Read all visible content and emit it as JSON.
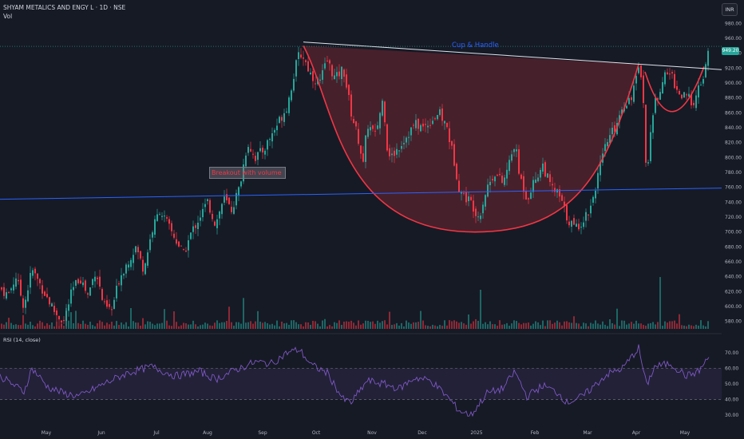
{
  "header": {
    "symbol": "SHYAM METALICS AND ENGY L · 1D · NSE",
    "volume_label": "Vol"
  },
  "currency": "INR",
  "last_price_tag": "949.20",
  "rsi_label": "RSI (14, close)",
  "colors": {
    "up": "#26a69a",
    "down": "#f23645",
    "cup": "#f23645",
    "trendline": "#2962ff",
    "rsi": "#7e57c2"
  },
  "annotations": {
    "cup_handle": "Cup & Handle",
    "breakout": "Breakout with volume"
  },
  "chart_data": [
    {
      "type": "candlestick",
      "title": "SHYAM METALICS AND ENGY L · 1D · NSE",
      "y_axis_ticks": [
        580,
        600,
        620,
        640,
        660,
        680,
        700,
        720,
        740,
        760,
        780,
        800,
        820,
        840,
        860,
        880,
        900,
        920,
        940,
        960,
        980
      ],
      "ylim": [
        570,
        990
      ],
      "x_axis_ticks": [
        "May",
        "Jun",
        "Jul",
        "Aug",
        "Sep",
        "Oct",
        "Nov",
        "Dec",
        "2025",
        "Feb",
        "Mar",
        "Apr",
        "May"
      ],
      "last_price": 949.2,
      "close_path": [
        [
          0,
          625
        ],
        [
          10,
          615
        ],
        [
          20,
          640
        ],
        [
          30,
          600
        ],
        [
          40,
          650
        ],
        [
          50,
          630
        ],
        [
          60,
          610
        ],
        [
          70,
          590
        ],
        [
          80,
          580
        ],
        [
          90,
          620
        ],
        [
          100,
          640
        ],
        [
          110,
          615
        ],
        [
          120,
          650
        ],
        [
          130,
          600
        ],
        [
          140,
          595
        ],
        [
          150,
          640
        ],
        [
          160,
          660
        ],
        [
          170,
          680
        ],
        [
          180,
          650
        ],
        [
          190,
          700
        ],
        [
          200,
          730
        ],
        [
          210,
          710
        ],
        [
          220,
          690
        ],
        [
          230,
          670
        ],
        [
          240,
          700
        ],
        [
          250,
          720
        ],
        [
          260,
          740
        ],
        [
          270,
          710
        ],
        [
          280,
          745
        ],
        [
          290,
          730
        ],
        [
          300,
          760
        ],
        [
          310,
          820
        ],
        [
          320,
          800
        ],
        [
          330,
          810
        ],
        [
          340,
          830
        ],
        [
          350,
          850
        ],
        [
          360,
          870
        ],
        [
          365,
          895
        ],
        [
          370,
          920
        ],
        [
          375,
          940
        ],
        [
          380,
          935
        ],
        [
          390,
          910
        ],
        [
          400,
          900
        ],
        [
          410,
          930
        ],
        [
          420,
          905
        ],
        [
          430,
          920
        ],
        [
          440,
          860
        ],
        [
          450,
          820
        ],
        [
          455,
          790
        ],
        [
          460,
          845
        ],
        [
          470,
          830
        ],
        [
          480,
          880
        ],
        [
          485,
          815
        ],
        [
          490,
          800
        ],
        [
          500,
          815
        ],
        [
          510,
          830
        ],
        [
          520,
          845
        ],
        [
          530,
          840
        ],
        [
          540,
          850
        ],
        [
          550,
          860
        ],
        [
          560,
          840
        ],
        [
          570,
          790
        ],
        [
          575,
          760
        ],
        [
          580,
          750
        ],
        [
          590,
          740
        ],
        [
          600,
          720
        ],
        [
          610,
          760
        ],
        [
          620,
          780
        ],
        [
          630,
          765
        ],
        [
          640,
          800
        ],
        [
          645,
          820
        ],
        [
          650,
          780
        ],
        [
          660,
          745
        ],
        [
          670,
          770
        ],
        [
          680,
          790
        ],
        [
          690,
          760
        ],
        [
          700,
          750
        ],
        [
          710,
          720
        ],
        [
          720,
          705
        ],
        [
          730,
          715
        ],
        [
          740,
          735
        ],
        [
          750,
          780
        ],
        [
          760,
          820
        ],
        [
          770,
          840
        ],
        [
          780,
          870
        ],
        [
          790,
          880
        ],
        [
          800,
          915
        ],
        [
          805,
          910
        ],
        [
          810,
          760
        ],
        [
          815,
          840
        ],
        [
          820,
          870
        ],
        [
          830,
          905
        ],
        [
          840,
          915
        ],
        [
          850,
          885
        ],
        [
          860,
          880
        ],
        [
          870,
          875
        ],
        [
          875,
          890
        ],
        [
          880,
          905
        ],
        [
          884,
          920
        ],
        [
          888,
          949
        ]
      ],
      "cup_handle": {
        "left_rim": [
          380,
          950
        ],
        "bottom": [
          595,
          700
        ],
        "right_rim": [
          800,
          925
        ],
        "handle_right": [
          882,
          922
        ],
        "resistance_start": [
          380,
          955
        ],
        "resistance_end": [
          904,
          918
        ]
      },
      "trendline_from": [
        0,
        744
      ],
      "trendline_to": [
        904,
        759
      ],
      "volume_spikes_x": [
        304,
        602,
        828
      ]
    },
    {
      "type": "line",
      "title": "RSI (14, close)",
      "y_axis_ticks": [
        30,
        40,
        50,
        60,
        70
      ],
      "ylim": [
        27,
        75
      ],
      "bands": [
        40,
        60
      ],
      "rsi_path": [
        [
          0,
          55
        ],
        [
          30,
          45
        ],
        [
          40,
          60
        ],
        [
          60,
          48
        ],
        [
          80,
          44
        ],
        [
          100,
          42
        ],
        [
          130,
          50
        ],
        [
          160,
          57
        ],
        [
          190,
          61
        ],
        [
          220,
          55
        ],
        [
          250,
          58
        ],
        [
          270,
          53
        ],
        [
          300,
          60
        ],
        [
          320,
          64
        ],
        [
          340,
          63
        ],
        [
          360,
          70
        ],
        [
          375,
          72
        ],
        [
          390,
          62
        ],
        [
          410,
          57
        ],
        [
          430,
          40
        ],
        [
          440,
          38
        ],
        [
          460,
          52
        ],
        [
          480,
          50
        ],
        [
          500,
          47
        ],
        [
          520,
          54
        ],
        [
          540,
          52
        ],
        [
          560,
          42
        ],
        [
          575,
          33
        ],
        [
          590,
          30
        ],
        [
          610,
          44
        ],
        [
          630,
          47
        ],
        [
          645,
          58
        ],
        [
          660,
          42
        ],
        [
          680,
          49
        ],
        [
          700,
          44
        ],
        [
          710,
          38
        ],
        [
          730,
          42
        ],
        [
          760,
          56
        ],
        [
          780,
          60
        ],
        [
          800,
          73
        ],
        [
          810,
          49
        ],
        [
          820,
          61
        ],
        [
          840,
          63
        ],
        [
          860,
          55
        ],
        [
          875,
          58
        ],
        [
          888,
          67
        ]
      ]
    }
  ]
}
